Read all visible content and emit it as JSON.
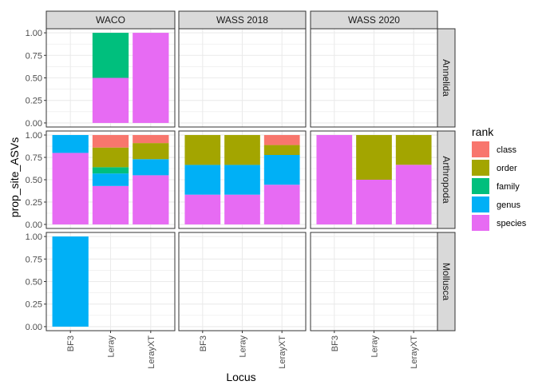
{
  "chart_data": {
    "type": "bar",
    "subtype": "stacked-faceted",
    "xlabel": "Locus",
    "ylabel": "prop_site_ASVs",
    "ylim": [
      0,
      1
    ],
    "y_ticks": [
      "0.00",
      "0.25",
      "0.50",
      "0.75",
      "1.00"
    ],
    "categories": [
      "BF3",
      "Leray",
      "LerayXT"
    ],
    "facet_columns": [
      "WACO",
      "WASS 2018",
      "WASS 2020"
    ],
    "facet_rows": [
      "Annelida",
      "Arthropoda",
      "Mollusca"
    ],
    "legend": {
      "title": "rank",
      "position": "right",
      "entries": [
        "class",
        "order",
        "family",
        "genus",
        "species"
      ]
    },
    "colors": {
      "class": "#F8766D",
      "order": "#A3A500",
      "family": "#00BF7D",
      "genus": "#00B0F6",
      "species": "#E76BF3",
      "strip_background": "#D9D9D9",
      "panel_border": "#333333",
      "grid": "#EBEBEB"
    },
    "grid": true,
    "panels": [
      {
        "row": "Annelida",
        "col": "WACO",
        "bars": [
          {
            "category": "Leray",
            "segments": [
              {
                "rank": "species",
                "value": 0.5
              },
              {
                "rank": "family",
                "value": 0.5
              }
            ]
          },
          {
            "category": "LerayXT",
            "segments": [
              {
                "rank": "species",
                "value": 1.0
              }
            ]
          }
        ]
      },
      {
        "row": "Annelida",
        "col": "WASS 2018",
        "bars": []
      },
      {
        "row": "Annelida",
        "col": "WASS 2020",
        "bars": []
      },
      {
        "row": "Arthropoda",
        "col": "WACO",
        "bars": [
          {
            "category": "BF3",
            "segments": [
              {
                "rank": "species",
                "value": 0.8
              },
              {
                "rank": "genus",
                "value": 0.2
              }
            ]
          },
          {
            "category": "Leray",
            "segments": [
              {
                "rank": "species",
                "value": 0.43
              },
              {
                "rank": "genus",
                "value": 0.14
              },
              {
                "rank": "family",
                "value": 0.07
              },
              {
                "rank": "order",
                "value": 0.22
              },
              {
                "rank": "class",
                "value": 0.14
              }
            ]
          },
          {
            "category": "LerayXT",
            "segments": [
              {
                "rank": "species",
                "value": 0.55
              },
              {
                "rank": "genus",
                "value": 0.18
              },
              {
                "rank": "order",
                "value": 0.18
              },
              {
                "rank": "class",
                "value": 0.09
              }
            ]
          }
        ]
      },
      {
        "row": "Arthropoda",
        "col": "WASS 2018",
        "bars": [
          {
            "category": "BF3",
            "segments": [
              {
                "rank": "species",
                "value": 0.333
              },
              {
                "rank": "genus",
                "value": 0.333
              },
              {
                "rank": "order",
                "value": 0.334
              }
            ]
          },
          {
            "category": "Leray",
            "segments": [
              {
                "rank": "species",
                "value": 0.333
              },
              {
                "rank": "genus",
                "value": 0.333
              },
              {
                "rank": "order",
                "value": 0.334
              }
            ]
          },
          {
            "category": "LerayXT",
            "segments": [
              {
                "rank": "species",
                "value": 0.444
              },
              {
                "rank": "genus",
                "value": 0.333
              },
              {
                "rank": "order",
                "value": 0.111
              },
              {
                "rank": "class",
                "value": 0.112
              }
            ]
          }
        ]
      },
      {
        "row": "Arthropoda",
        "col": "WASS 2020",
        "bars": [
          {
            "category": "BF3",
            "segments": [
              {
                "rank": "species",
                "value": 1.0
              }
            ]
          },
          {
            "category": "Leray",
            "segments": [
              {
                "rank": "species",
                "value": 0.5
              },
              {
                "rank": "order",
                "value": 0.5
              }
            ]
          },
          {
            "category": "LerayXT",
            "segments": [
              {
                "rank": "species",
                "value": 0.667
              },
              {
                "rank": "order",
                "value": 0.333
              }
            ]
          }
        ]
      },
      {
        "row": "Mollusca",
        "col": "WACO",
        "bars": [
          {
            "category": "BF3",
            "segments": [
              {
                "rank": "genus",
                "value": 1.0
              }
            ]
          }
        ]
      },
      {
        "row": "Mollusca",
        "col": "WASS 2018",
        "bars": []
      },
      {
        "row": "Mollusca",
        "col": "WASS 2020",
        "bars": []
      }
    ]
  }
}
